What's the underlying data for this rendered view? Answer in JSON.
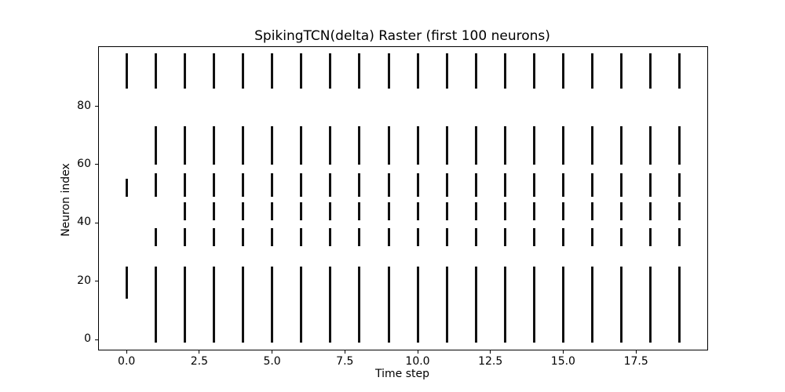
{
  "chart_data": {
    "type": "scatter",
    "subtype": "spike_raster",
    "marker": "|",
    "marker_color": "#111111",
    "title": "SpikingTCN(delta) Raster (first 100 neurons)",
    "xlabel": "Time step",
    "ylabel": "Neuron index",
    "xlim": [
      -0.95,
      19.95
    ],
    "ylim": [
      -3.5,
      100.3
    ],
    "grid": false,
    "legend": null,
    "x_ticks": [
      0.0,
      2.5,
      5.0,
      7.5,
      10.0,
      12.5,
      15.0,
      17.5
    ],
    "x_tick_labels": [
      "0.0",
      "2.5",
      "5.0",
      "7.5",
      "10.0",
      "12.5",
      "15.0",
      "17.5"
    ],
    "y_ticks": [
      0,
      20,
      40,
      60,
      80
    ],
    "y_tick_labels": [
      "0",
      "20",
      "40",
      "60",
      "80"
    ],
    "spikes": [
      {
        "t": 0,
        "neuron_bands": [
          [
            15,
            24
          ],
          [
            50,
            54
          ],
          [
            87,
            97
          ]
        ]
      },
      {
        "t": 1,
        "neuron_bands": [
          [
            0,
            24
          ],
          [
            33,
            37
          ],
          [
            50,
            56
          ],
          [
            61,
            72
          ],
          [
            87,
            97
          ]
        ]
      },
      {
        "t": 2,
        "neuron_bands": [
          [
            0,
            24
          ],
          [
            33,
            37
          ],
          [
            42,
            46
          ],
          [
            50,
            56
          ],
          [
            61,
            72
          ],
          [
            87,
            97
          ]
        ]
      },
      {
        "t": 3,
        "neuron_bands": [
          [
            0,
            24
          ],
          [
            33,
            37
          ],
          [
            42,
            46
          ],
          [
            50,
            56
          ],
          [
            61,
            72
          ],
          [
            87,
            97
          ]
        ]
      },
      {
        "t": 4,
        "neuron_bands": [
          [
            0,
            24
          ],
          [
            33,
            37
          ],
          [
            42,
            46
          ],
          [
            50,
            56
          ],
          [
            61,
            72
          ],
          [
            87,
            97
          ]
        ]
      },
      {
        "t": 5,
        "neuron_bands": [
          [
            0,
            24
          ],
          [
            33,
            37
          ],
          [
            42,
            46
          ],
          [
            50,
            56
          ],
          [
            61,
            72
          ],
          [
            87,
            97
          ]
        ]
      },
      {
        "t": 6,
        "neuron_bands": [
          [
            0,
            24
          ],
          [
            33,
            37
          ],
          [
            42,
            46
          ],
          [
            50,
            56
          ],
          [
            61,
            72
          ],
          [
            87,
            97
          ]
        ]
      },
      {
        "t": 7,
        "neuron_bands": [
          [
            0,
            24
          ],
          [
            33,
            37
          ],
          [
            42,
            46
          ],
          [
            50,
            56
          ],
          [
            61,
            72
          ],
          [
            87,
            97
          ]
        ]
      },
      {
        "t": 8,
        "neuron_bands": [
          [
            0,
            24
          ],
          [
            33,
            37
          ],
          [
            42,
            46
          ],
          [
            50,
            56
          ],
          [
            61,
            72
          ],
          [
            87,
            97
          ]
        ]
      },
      {
        "t": 9,
        "neuron_bands": [
          [
            0,
            24
          ],
          [
            33,
            37
          ],
          [
            42,
            46
          ],
          [
            50,
            56
          ],
          [
            61,
            72
          ],
          [
            87,
            97
          ]
        ]
      },
      {
        "t": 10,
        "neuron_bands": [
          [
            0,
            24
          ],
          [
            33,
            37
          ],
          [
            42,
            46
          ],
          [
            50,
            56
          ],
          [
            61,
            72
          ],
          [
            87,
            97
          ]
        ]
      },
      {
        "t": 11,
        "neuron_bands": [
          [
            0,
            24
          ],
          [
            33,
            37
          ],
          [
            42,
            46
          ],
          [
            50,
            56
          ],
          [
            61,
            72
          ],
          [
            87,
            97
          ]
        ]
      },
      {
        "t": 12,
        "neuron_bands": [
          [
            0,
            24
          ],
          [
            33,
            37
          ],
          [
            42,
            46
          ],
          [
            50,
            56
          ],
          [
            61,
            72
          ],
          [
            87,
            97
          ]
        ]
      },
      {
        "t": 13,
        "neuron_bands": [
          [
            0,
            24
          ],
          [
            33,
            37
          ],
          [
            42,
            46
          ],
          [
            50,
            56
          ],
          [
            61,
            72
          ],
          [
            87,
            97
          ]
        ]
      },
      {
        "t": 14,
        "neuron_bands": [
          [
            0,
            24
          ],
          [
            33,
            37
          ],
          [
            42,
            46
          ],
          [
            50,
            56
          ],
          [
            61,
            72
          ],
          [
            87,
            97
          ]
        ]
      },
      {
        "t": 15,
        "neuron_bands": [
          [
            0,
            24
          ],
          [
            33,
            37
          ],
          [
            42,
            46
          ],
          [
            50,
            56
          ],
          [
            61,
            72
          ],
          [
            87,
            97
          ]
        ]
      },
      {
        "t": 16,
        "neuron_bands": [
          [
            0,
            24
          ],
          [
            33,
            37
          ],
          [
            42,
            46
          ],
          [
            50,
            56
          ],
          [
            61,
            72
          ],
          [
            87,
            97
          ]
        ]
      },
      {
        "t": 17,
        "neuron_bands": [
          [
            0,
            24
          ],
          [
            33,
            37
          ],
          [
            42,
            46
          ],
          [
            50,
            56
          ],
          [
            61,
            72
          ],
          [
            87,
            97
          ]
        ]
      },
      {
        "t": 18,
        "neuron_bands": [
          [
            0,
            24
          ],
          [
            33,
            37
          ],
          [
            42,
            46
          ],
          [
            50,
            56
          ],
          [
            61,
            72
          ],
          [
            87,
            97
          ]
        ]
      },
      {
        "t": 19,
        "neuron_bands": [
          [
            0,
            24
          ],
          [
            33,
            37
          ],
          [
            42,
            46
          ],
          [
            50,
            56
          ],
          [
            61,
            72
          ],
          [
            87,
            97
          ]
        ]
      }
    ]
  }
}
